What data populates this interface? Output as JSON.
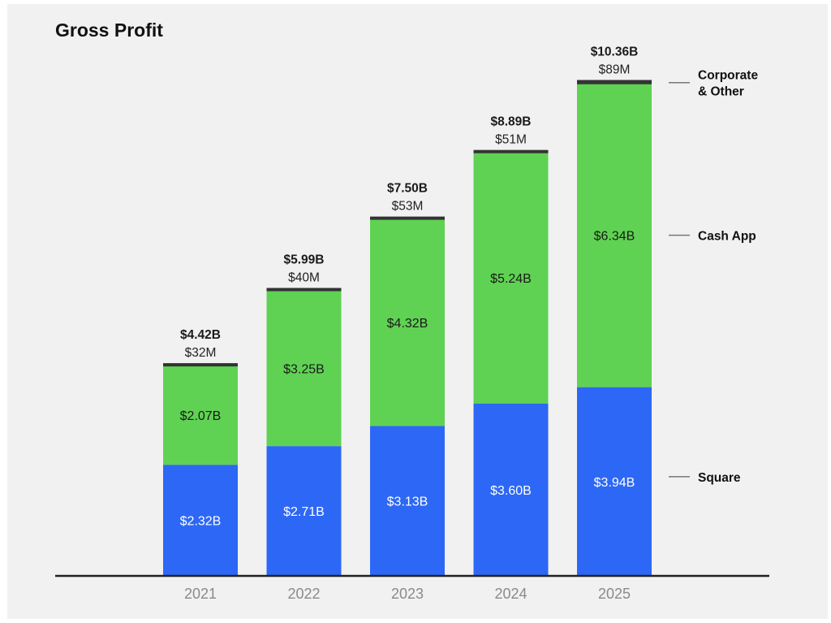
{
  "chart_data": {
    "type": "bar",
    "stacked": true,
    "title": "Gross Profit",
    "xlabel": "",
    "ylabel": "",
    "categories": [
      "2021",
      "2022",
      "2023",
      "2024",
      "2025"
    ],
    "unit": "USD billions",
    "series": [
      {
        "name": "Square",
        "color": "#2d67f5",
        "label_color": "#ffffff",
        "values": [
          2.32,
          2.71,
          3.13,
          3.6,
          3.94
        ],
        "labels": [
          "$2.32B",
          "$2.71B",
          "$3.13B",
          "$3.60B",
          "$3.94B"
        ]
      },
      {
        "name": "Cash App",
        "color": "#5fd253",
        "label_color": "#1a1a1a",
        "values": [
          2.07,
          3.25,
          4.32,
          5.24,
          6.34
        ],
        "labels": [
          "$2.07B",
          "$3.25B",
          "$4.32B",
          "$5.24B",
          "$6.34B"
        ]
      },
      {
        "name": "Corporate & Other",
        "color": "#333333",
        "label_color": "#222222",
        "values": [
          0.032,
          0.04,
          0.053,
          0.051,
          0.089
        ],
        "labels": [
          "$32M",
          "$40M",
          "$53M",
          "$51M",
          "$89M"
        ]
      }
    ],
    "totals": [
      4.42,
      5.99,
      7.5,
      8.89,
      10.36
    ],
    "total_labels": [
      "$4.42B",
      "$5.99B",
      "$7.50B",
      "$8.89B",
      "$10.36B"
    ],
    "legend": {
      "placement": "right",
      "entries": [
        {
          "line1": "Corporate",
          "line2": "& Other"
        },
        {
          "line1": "Cash App",
          "line2": ""
        },
        {
          "line1": "Square",
          "line2": ""
        }
      ]
    },
    "ylim": [
      0,
      10.36
    ],
    "grid": false,
    "axis_color": "#222222",
    "tick_color": "#8a8a8a"
  }
}
